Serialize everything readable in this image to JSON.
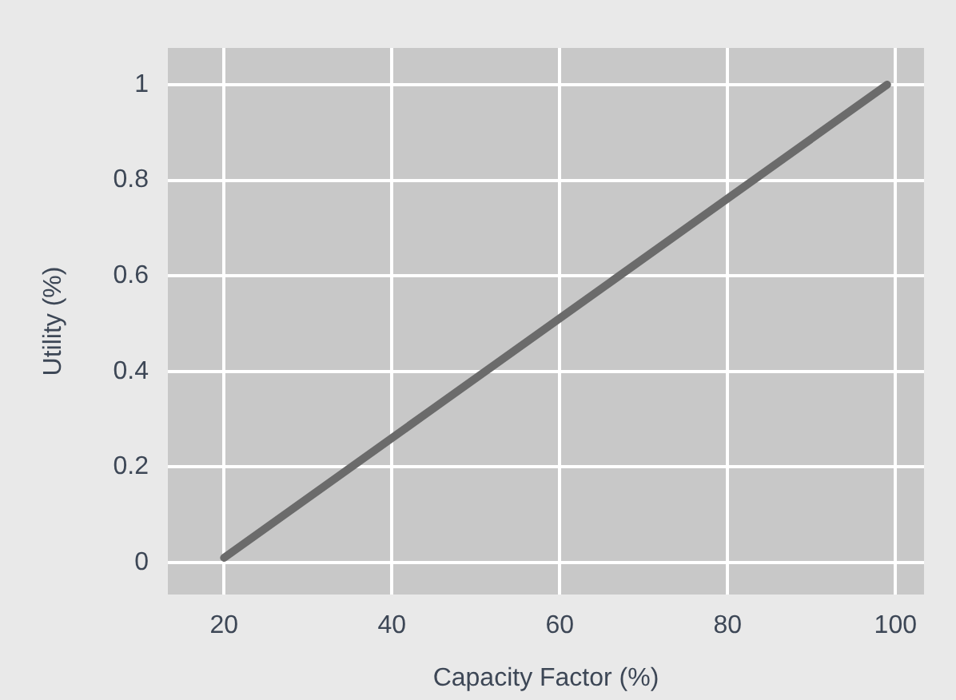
{
  "chart_data": {
    "type": "line",
    "xlabel": "Capacity Factor (%)",
    "ylabel": "Utility (%)",
    "series": [
      {
        "color": "#6b6b6b",
        "x": [
          20,
          99
        ],
        "values": [
          0.01,
          1
        ]
      }
    ],
    "xlim": [
      13.3,
      103.4
    ],
    "ylim": [
      -0.067,
      1.077
    ],
    "xticks": [
      20,
      40,
      60,
      80,
      100
    ],
    "yticks": [
      0,
      0.2,
      0.4,
      0.6,
      0.8,
      1
    ],
    "grid": true,
    "legend": false,
    "marker": "none",
    "line_style": "solid"
  }
}
